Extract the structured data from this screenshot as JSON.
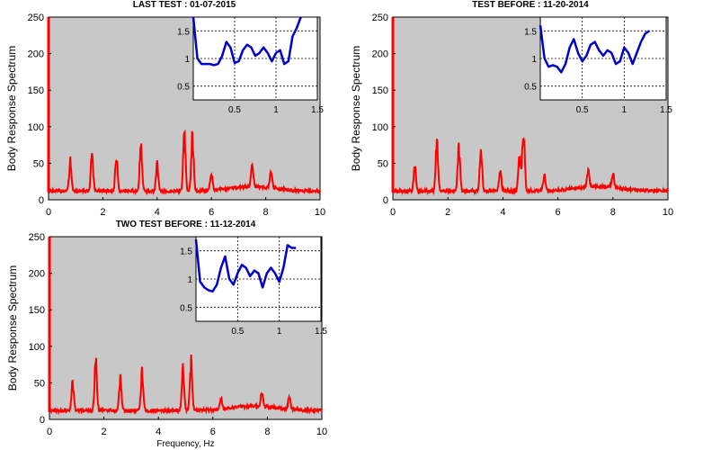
{
  "colors": {
    "plot_background": "#c8c8c8",
    "main_series": "#ff0000",
    "inset_series": "#0000cc",
    "inset_background": "#ffffff",
    "grid": "#000000"
  },
  "chart_data": [
    {
      "type": "line",
      "title": "LAST TEST : 01-07-2015",
      "xlabel": "",
      "ylabel": "Body Response Spectrum",
      "xlim": [
        0,
        10
      ],
      "ylim": [
        0,
        250
      ],
      "x_ticks": [
        "0",
        "2",
        "4",
        "6",
        "8",
        "10"
      ],
      "y_ticks": [
        "0",
        "50",
        "100",
        "150",
        "200",
        "250"
      ],
      "grid": false,
      "baseline": 10,
      "peaks": [
        {
          "f": 0.8,
          "h": 45
        },
        {
          "f": 1.6,
          "h": 58
        },
        {
          "f": 2.5,
          "h": 52
        },
        {
          "f": 3.4,
          "h": 72
        },
        {
          "f": 4.0,
          "h": 38
        },
        {
          "f": 5.0,
          "h": 88
        },
        {
          "f": 5.3,
          "h": 82
        },
        {
          "f": 6.0,
          "h": 25
        },
        {
          "f": 7.5,
          "h": 30
        },
        {
          "f": 8.2,
          "h": 25
        }
      ],
      "inset": {
        "type": "line",
        "xlim": [
          0,
          1.5
        ],
        "ylim": [
          0.25,
          1.75
        ],
        "x_ticks": [
          "0.5",
          "1",
          "1.5"
        ],
        "y_ticks": [
          "0.5",
          "1",
          "1.5"
        ],
        "grid": true,
        "x": [
          0,
          0.05,
          0.1,
          0.15,
          0.2,
          0.25,
          0.3,
          0.35,
          0.4,
          0.45,
          0.5,
          0.55,
          0.6,
          0.65,
          0.7,
          0.75,
          0.8,
          0.85,
          0.9,
          0.95,
          1.0,
          1.05,
          1.1,
          1.15,
          1.2,
          1.25,
          1.3
        ],
        "y": [
          1.75,
          1.0,
          0.9,
          0.9,
          0.9,
          0.88,
          0.9,
          1.05,
          1.3,
          1.2,
          0.92,
          0.95,
          1.15,
          1.25,
          1.2,
          1.05,
          1.1,
          1.2,
          1.1,
          0.95,
          1.1,
          1.15,
          0.9,
          0.95,
          1.4,
          1.55,
          1.75
        ]
      }
    },
    {
      "type": "line",
      "title": "TEST BEFORE : 11-20-2014",
      "xlabel": "",
      "ylabel": "Body Response Spectrum",
      "xlim": [
        0,
        10
      ],
      "ylim": [
        0,
        250
      ],
      "x_ticks": [
        "0",
        "2",
        "4",
        "6",
        "8",
        "10"
      ],
      "y_ticks": [
        "0",
        "50",
        "100",
        "150",
        "200",
        "250"
      ],
      "grid": false,
      "baseline": 10,
      "peaks": [
        {
          "f": 0.8,
          "h": 35
        },
        {
          "f": 1.6,
          "h": 72
        },
        {
          "f": 2.4,
          "h": 62
        },
        {
          "f": 3.2,
          "h": 68
        },
        {
          "f": 3.9,
          "h": 30
        },
        {
          "f": 4.6,
          "h": 55
        },
        {
          "f": 4.75,
          "h": 95
        },
        {
          "f": 5.5,
          "h": 22
        },
        {
          "f": 7.1,
          "h": 25
        },
        {
          "f": 8.0,
          "h": 22
        }
      ],
      "inset": {
        "type": "line",
        "xlim": [
          0,
          1.5
        ],
        "ylim": [
          0.25,
          1.75
        ],
        "x_ticks": [
          "0.5",
          "1",
          "1.5"
        ],
        "y_ticks": [
          "0.5",
          "1",
          "1.5"
        ],
        "grid": true,
        "x": [
          0,
          0.05,
          0.1,
          0.15,
          0.2,
          0.25,
          0.3,
          0.35,
          0.4,
          0.45,
          0.5,
          0.55,
          0.6,
          0.65,
          0.7,
          0.75,
          0.8,
          0.85,
          0.9,
          0.95,
          1.0,
          1.05,
          1.1,
          1.15,
          1.2,
          1.25,
          1.3
        ],
        "y": [
          1.6,
          1.0,
          0.85,
          0.88,
          0.85,
          0.75,
          0.9,
          1.2,
          1.35,
          1.1,
          0.95,
          1.05,
          1.25,
          1.3,
          1.15,
          1.05,
          1.15,
          1.1,
          0.9,
          0.95,
          1.2,
          1.1,
          0.9,
          1.1,
          1.3,
          1.45,
          1.5
        ]
      }
    },
    {
      "type": "line",
      "title": "TWO TEST BEFORE : 11-12-2014",
      "xlabel": "Frequency, Hz",
      "ylabel": "Body Response Spectrum",
      "xlim": [
        0,
        10
      ],
      "ylim": [
        0,
        250
      ],
      "x_ticks": [
        "0",
        "2",
        "4",
        "6",
        "8",
        "10"
      ],
      "y_ticks": [
        "0",
        "50",
        "100",
        "150",
        "200",
        "250"
      ],
      "grid": false,
      "baseline": 10,
      "peaks": [
        {
          "f": 0.85,
          "h": 42
        },
        {
          "f": 1.7,
          "h": 78
        },
        {
          "f": 2.6,
          "h": 48
        },
        {
          "f": 3.4,
          "h": 55
        },
        {
          "f": 4.9,
          "h": 60
        },
        {
          "f": 5.2,
          "h": 72
        },
        {
          "f": 6.3,
          "h": 15
        },
        {
          "f": 7.8,
          "h": 20
        },
        {
          "f": 8.8,
          "h": 18
        }
      ],
      "inset": {
        "type": "line",
        "xlim": [
          0,
          1.5
        ],
        "ylim": [
          0.25,
          1.75
        ],
        "x_ticks": [
          "0.5",
          "1",
          "1.5"
        ],
        "y_ticks": [
          "0.5",
          "1",
          "1.5"
        ],
        "grid": true,
        "x": [
          0,
          0.05,
          0.1,
          0.15,
          0.2,
          0.25,
          0.3,
          0.35,
          0.4,
          0.45,
          0.5,
          0.55,
          0.6,
          0.65,
          0.7,
          0.75,
          0.8,
          0.85,
          0.9,
          0.95,
          1.0,
          1.05,
          1.1,
          1.15,
          1.2
        ],
        "y": [
          1.7,
          0.95,
          0.85,
          0.8,
          0.78,
          0.9,
          1.2,
          1.4,
          1.0,
          0.9,
          1.1,
          1.25,
          1.2,
          1.05,
          1.15,
          1.1,
          0.85,
          1.1,
          1.2,
          1.1,
          0.95,
          1.2,
          1.6,
          1.55,
          1.55
        ]
      }
    }
  ]
}
